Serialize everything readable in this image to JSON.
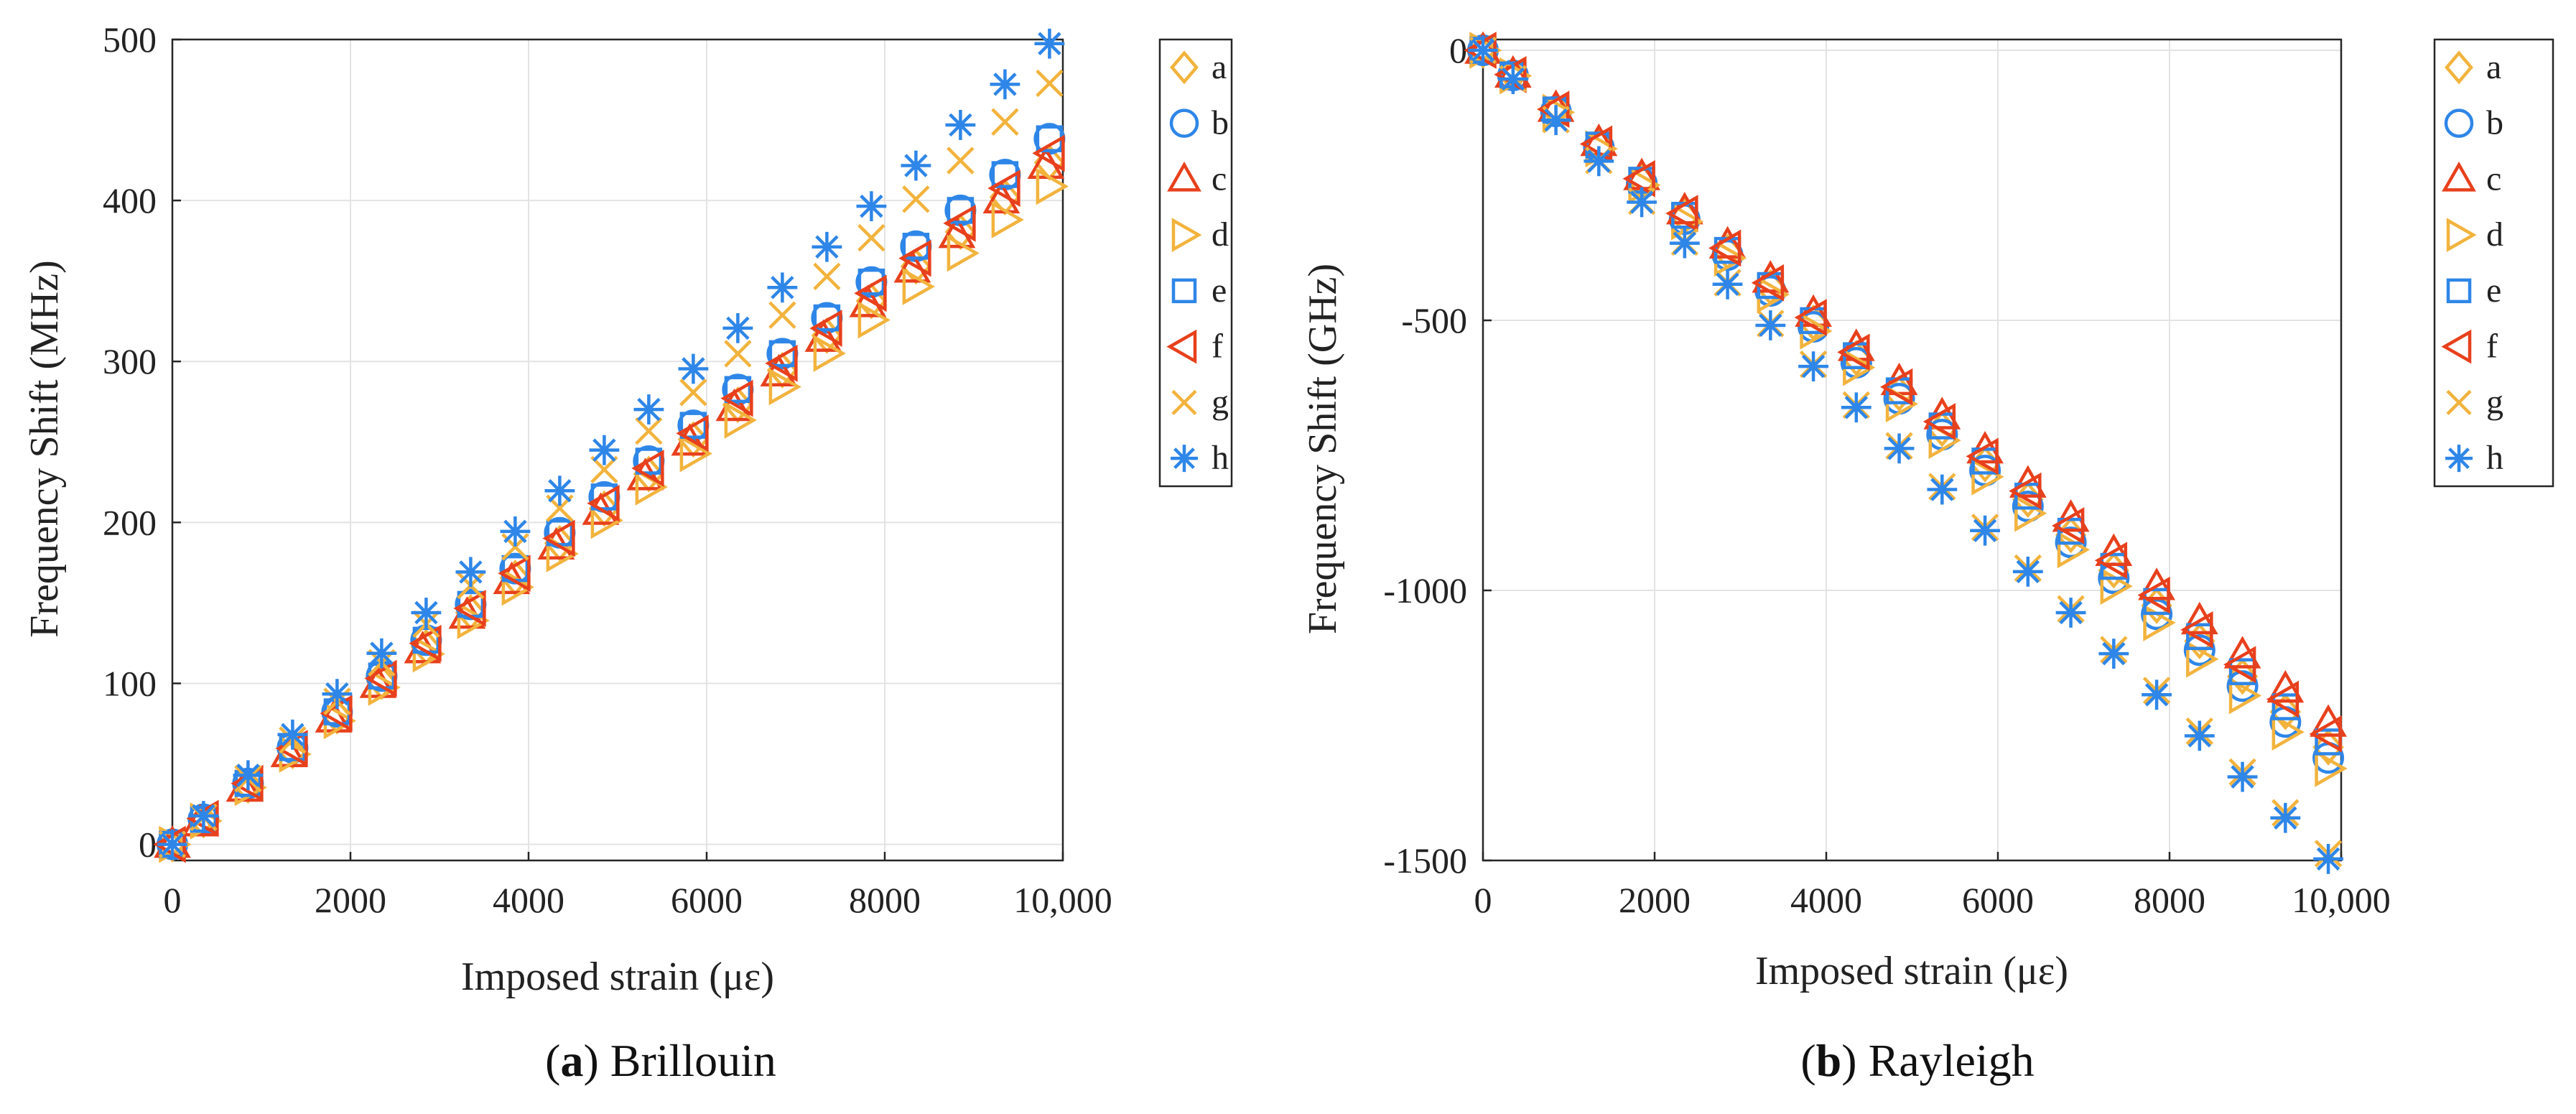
{
  "colors": {
    "orange": "#F2B33D",
    "blue": "#2E86E8",
    "red": "#E8401C"
  },
  "legend": [
    {
      "key": "a",
      "marker": "diamond",
      "color": "#F2B33D"
    },
    {
      "key": "b",
      "marker": "circle",
      "color": "#2E86E8"
    },
    {
      "key": "c",
      "marker": "triangle-up",
      "color": "#E8401C"
    },
    {
      "key": "d",
      "marker": "triangle-right",
      "color": "#F2B33D"
    },
    {
      "key": "e",
      "marker": "square",
      "color": "#2E86E8"
    },
    {
      "key": "f",
      "marker": "triangle-left",
      "color": "#E8401C"
    },
    {
      "key": "g",
      "marker": "x",
      "color": "#F2B33D"
    },
    {
      "key": "h",
      "marker": "asterisk",
      "color": "#2E86E8"
    }
  ],
  "chart_data": [
    {
      "type": "scatter",
      "id": "brillouin",
      "caption_label": "(a)",
      "caption_letter": "a",
      "caption_text": "Brillouin",
      "xlabel": "Imposed strain (με)",
      "ylabel": "Frequency Shift (MHz)",
      "xlim": [
        0,
        10000
      ],
      "ylim": [
        -10,
        500
      ],
      "xticks": [
        0,
        2000,
        4000,
        6000,
        8000,
        10000
      ],
      "xtick_labels": [
        "0",
        "2000",
        "4000",
        "6000",
        "8000",
        "10,000"
      ],
      "yticks": [
        0,
        100,
        200,
        300,
        400,
        500
      ],
      "ytick_labels": [
        "0",
        "100",
        "200",
        "300",
        "400",
        "500"
      ],
      "x": [
        0,
        500,
        1000,
        1500,
        2000,
        2500,
        3000,
        3500,
        4000,
        4500,
        5000,
        5500,
        6000,
        6500,
        7000,
        7500,
        8000,
        8500,
        9000,
        9500,
        10000
      ],
      "series": [
        {
          "name": "a",
          "slope": 0.043
        },
        {
          "name": "b",
          "slope": 0.0445
        },
        {
          "name": "c",
          "slope": 0.043
        },
        {
          "name": "d",
          "slope": 0.0415
        },
        {
          "name": "e",
          "slope": 0.0445
        },
        {
          "name": "f",
          "slope": 0.0435
        },
        {
          "name": "g",
          "slope": 0.048
        },
        {
          "name": "h",
          "slope": 0.0505
        }
      ],
      "x_offset": -150,
      "series_x_shift": [
        0,
        0,
        -40,
        0,
        0,
        20,
        0,
        0
      ]
    },
    {
      "type": "scatter",
      "id": "rayleigh",
      "caption_label": "(b)",
      "caption_letter": "b",
      "caption_text": "Rayleigh",
      "xlabel": "Imposed strain (με)",
      "ylabel": "Frequency Shift (GHz)",
      "xlim": [
        0,
        10000
      ],
      "ylim": [
        -1500,
        20
      ],
      "xticks": [
        0,
        2000,
        4000,
        6000,
        8000,
        10000
      ],
      "xtick_labels": [
        "0",
        "2000",
        "4000",
        "6000",
        "8000",
        "10,000"
      ],
      "yticks": [
        0,
        -500,
        -1000,
        -1500
      ],
      "ytick_labels": [
        "0",
        "-500",
        "-1000",
        "-1500"
      ],
      "x": [
        0,
        500,
        1000,
        1500,
        2000,
        2500,
        3000,
        3500,
        4000,
        4500,
        5000,
        5500,
        6000,
        6500,
        7000,
        7500,
        8000,
        8500,
        9000,
        9500,
        10000
      ],
      "series": [
        {
          "name": "a",
          "slope": -0.131
        },
        {
          "name": "b",
          "slope": -0.133
        },
        {
          "name": "c",
          "slope": -0.1265
        },
        {
          "name": "d",
          "slope": -0.135
        },
        {
          "name": "e",
          "slope": -0.13
        },
        {
          "name": "f",
          "slope": -0.1285
        },
        {
          "name": "g",
          "slope": -0.151
        },
        {
          "name": "h",
          "slope": -0.152
        }
      ],
      "x_offset": -150,
      "series_x_shift": [
        0,
        0,
        0,
        0,
        0,
        0,
        0,
        0
      ]
    }
  ]
}
